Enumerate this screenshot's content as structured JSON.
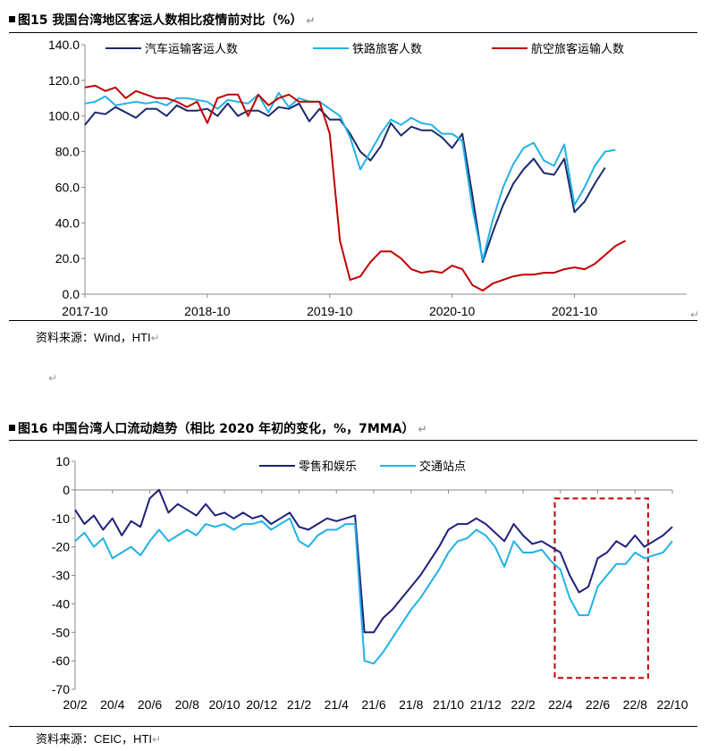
{
  "fig15": {
    "title": "图15 我国台湾地区客运人数相比疫情前对比（%）",
    "source": "资料来源：Wind，HTI"
  },
  "fig16": {
    "title": "图16 中国台湾人口流动趋势（相比 2020 年初的变化，%，7MMA）",
    "source": "资料来源：CEIC，HTI"
  },
  "colors": {
    "dark_blue": "#1b2a6b",
    "navy": "#1f1f7a",
    "light_blue": "#20b2e6",
    "red": "#c00000",
    "box": "#c00000"
  },
  "chart_data": [
    {
      "type": "line",
      "title": "",
      "xlabel": "",
      "ylabel": "",
      "ylim": [
        0,
        140
      ],
      "y_ticks": [
        "0.0",
        "20.0",
        "40.0",
        "60.0",
        "80.0",
        "100.0",
        "120.0",
        "140.0"
      ],
      "x_ticks": [
        "2017-10",
        "2018-10",
        "2019-10",
        "2020-10",
        "2021-10"
      ],
      "x_tick_pos": [
        0,
        12,
        24,
        36,
        48
      ],
      "xlim": [
        0,
        59
      ],
      "grid": false,
      "legend": "top",
      "series": [
        {
          "name": "汽车运输客运人数",
          "color": "#1b2a6b",
          "x": [
            0,
            1,
            2,
            3,
            4,
            5,
            6,
            7,
            8,
            9,
            10,
            11,
            12,
            13,
            14,
            15,
            16,
            17,
            18,
            19,
            20,
            21,
            22,
            23,
            24,
            25,
            26,
            27,
            28,
            29,
            30,
            31,
            32,
            33,
            34,
            35,
            36,
            37,
            38,
            39,
            40,
            41,
            42,
            43,
            44,
            45,
            46,
            47,
            48,
            49,
            50,
            51,
            52,
            53,
            54,
            55,
            56,
            57
          ],
          "values": [
            95,
            102,
            101,
            105,
            102,
            99,
            104,
            104,
            100,
            106,
            103,
            103,
            104,
            100,
            107,
            100,
            103,
            103,
            100,
            105,
            104,
            107,
            97,
            104,
            98,
            98,
            90,
            80,
            75,
            83,
            96,
            89,
            94,
            92,
            92,
            88,
            82,
            90,
            55,
            18,
            35,
            50,
            62,
            70,
            76,
            68,
            67,
            76,
            46,
            52,
            62,
            71,
            null,
            null,
            null,
            null,
            null,
            null
          ]
        },
        {
          "name": "铁路旅客人数",
          "color": "#20b2e6",
          "x": [
            0,
            1,
            2,
            3,
            4,
            5,
            6,
            7,
            8,
            9,
            10,
            11,
            12,
            13,
            14,
            15,
            16,
            17,
            18,
            19,
            20,
            21,
            22,
            23,
            24,
            25,
            26,
            27,
            28,
            29,
            30,
            31,
            32,
            33,
            34,
            35,
            36,
            37,
            38,
            39,
            40,
            41,
            42,
            43,
            44,
            45,
            46,
            47,
            48,
            49,
            50,
            51,
            52,
            53,
            54,
            55,
            56,
            57,
            58
          ],
          "values": [
            107,
            108,
            111,
            106,
            107,
            108,
            107,
            108,
            106,
            110,
            110,
            109,
            108,
            104,
            109,
            108,
            107,
            112,
            102,
            113,
            105,
            110,
            108,
            108,
            104,
            100,
            88,
            70,
            80,
            90,
            98,
            95,
            99,
            96,
            95,
            90,
            90,
            86,
            48,
            19,
            42,
            60,
            73,
            82,
            85,
            75,
            72,
            84,
            50,
            60,
            72,
            80,
            81,
            null,
            null,
            null,
            null,
            null,
            null
          ]
        },
        {
          "name": "航空旅客运输人数",
          "color": "#c00000",
          "x": [
            0,
            1,
            2,
            3,
            4,
            5,
            6,
            7,
            8,
            9,
            10,
            11,
            12,
            13,
            14,
            15,
            16,
            17,
            18,
            19,
            20,
            21,
            22,
            23,
            24,
            25,
            26,
            27,
            28,
            29,
            30,
            31,
            32,
            33,
            34,
            35,
            36,
            37,
            38,
            39,
            40,
            41,
            42,
            43,
            44,
            45,
            46,
            47,
            48,
            49,
            50,
            51,
            52,
            53,
            54,
            55,
            56,
            57,
            58
          ],
          "values": [
            116,
            117,
            114,
            116,
            110,
            114,
            112,
            110,
            110,
            108,
            105,
            108,
            96,
            110,
            112,
            112,
            100,
            112,
            106,
            110,
            112,
            108,
            108,
            108,
            90,
            30,
            8,
            10,
            18,
            24,
            24,
            20,
            14,
            12,
            13,
            12,
            16,
            14,
            5,
            2,
            6,
            8,
            10,
            11,
            11,
            12,
            12,
            14,
            15,
            14,
            17,
            22,
            27,
            30,
            null,
            null,
            null,
            null,
            null
          ]
        }
      ]
    },
    {
      "type": "line",
      "title": "",
      "xlabel": "",
      "ylabel": "",
      "ylim": [
        -70,
        10
      ],
      "y_ticks": [
        "10",
        "0",
        "-10",
        "-20",
        "-30",
        "-40",
        "-50",
        "-60",
        "-70"
      ],
      "x_ticks": [
        "20/2",
        "20/4",
        "20/6",
        "20/8",
        "20/10",
        "20/12",
        "21/2",
        "21/4",
        "21/6",
        "21/8",
        "21/10",
        "21/12",
        "22/2",
        "22/4",
        "22/6",
        "22/8",
        "22/10"
      ],
      "x_tick_pos": [
        0,
        2,
        4,
        6,
        8,
        10,
        12,
        14,
        16,
        18,
        20,
        22,
        24,
        26,
        28,
        30,
        32
      ],
      "xlim": [
        0,
        32
      ],
      "grid": false,
      "legend": "top",
      "highlight_box": {
        "x": [
          25.7,
          30.7
        ],
        "y": [
          -66,
          -3
        ]
      },
      "series": [
        {
          "name": "零售和娱乐",
          "color": "#1f1f7a",
          "x": [
            0,
            0.5,
            1,
            1.5,
            2,
            2.5,
            3,
            3.5,
            4,
            4.5,
            5,
            5.5,
            6,
            6.5,
            7,
            7.5,
            8,
            8.5,
            9,
            9.5,
            10,
            10.5,
            11,
            11.5,
            12,
            12.5,
            13,
            13.5,
            14,
            14.5,
            15,
            15.5,
            16,
            16.5,
            17,
            17.5,
            18,
            18.5,
            19,
            19.5,
            20,
            20.5,
            21,
            21.5,
            22,
            22.5,
            23,
            23.5,
            24,
            24.5,
            25,
            25.5,
            26,
            26.5,
            27,
            27.5,
            28,
            28.5,
            29,
            29.5,
            30,
            30.5,
            31,
            31.5,
            32
          ],
          "values": [
            -7,
            -12,
            -9,
            -14,
            -10,
            -16,
            -11,
            -13,
            -3,
            0,
            -8,
            -5,
            -7,
            -9,
            -5,
            -9,
            -8,
            -10,
            -8,
            -10,
            -9,
            -12,
            -10,
            -8,
            -13,
            -14,
            -12,
            -10,
            -11,
            -10,
            -9,
            -50,
            -50,
            -45,
            -42,
            -38,
            -34,
            -30,
            -25,
            -20,
            -14,
            -12,
            -12,
            -10,
            -12,
            -15,
            -18,
            -12,
            -16,
            -19,
            -18,
            -20,
            -22,
            -30,
            -36,
            -34,
            -24,
            -22,
            -18,
            -20,
            -16,
            -20,
            -18,
            -16,
            -13
          ]
        },
        {
          "name": "交通站点",
          "color": "#20b2e6",
          "x": [
            0,
            0.5,
            1,
            1.5,
            2,
            2.5,
            3,
            3.5,
            4,
            4.5,
            5,
            5.5,
            6,
            6.5,
            7,
            7.5,
            8,
            8.5,
            9,
            9.5,
            10,
            10.5,
            11,
            11.5,
            12,
            12.5,
            13,
            13.5,
            14,
            14.5,
            15,
            15.5,
            16,
            16.5,
            17,
            17.5,
            18,
            18.5,
            19,
            19.5,
            20,
            20.5,
            21,
            21.5,
            22,
            22.5,
            23,
            23.5,
            24,
            24.5,
            25,
            25.5,
            26,
            26.5,
            27,
            27.5,
            28,
            28.5,
            29,
            29.5,
            30,
            30.5,
            31,
            31.5,
            32
          ],
          "values": [
            -18,
            -15,
            -20,
            -17,
            -24,
            -22,
            -20,
            -23,
            -18,
            -14,
            -18,
            -16,
            -14,
            -16,
            -12,
            -13,
            -12,
            -14,
            -12,
            -12,
            -11,
            -14,
            -12,
            -10,
            -18,
            -20,
            -16,
            -14,
            -14,
            -12,
            -12,
            -60,
            -61,
            -57,
            -52,
            -47,
            -42,
            -38,
            -33,
            -28,
            -22,
            -18,
            -17,
            -14,
            -16,
            -20,
            -27,
            -18,
            -22,
            -22,
            -21,
            -25,
            -28,
            -38,
            -44,
            -44,
            -34,
            -30,
            -26,
            -26,
            -22,
            -24,
            -23,
            -22,
            -18
          ]
        }
      ]
    }
  ]
}
